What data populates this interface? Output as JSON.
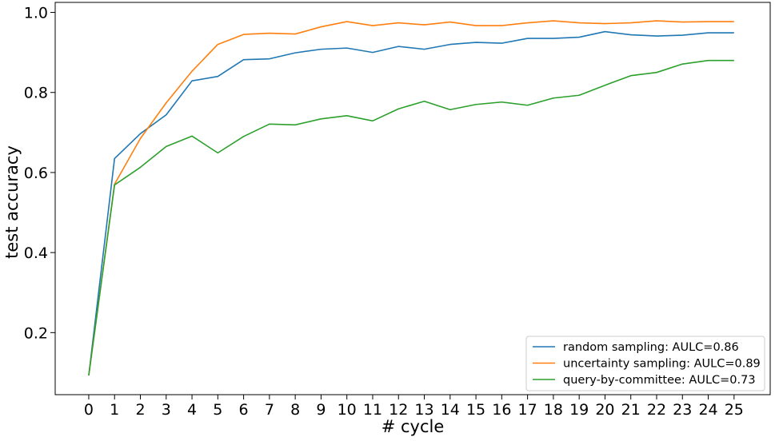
{
  "chart_data": {
    "type": "line",
    "xlabel": "# cycle",
    "ylabel": "test accuracy",
    "xlim": [
      -1.3,
      26.4
    ],
    "ylim": [
      0.045,
      1.025
    ],
    "x_ticks": [
      "0",
      "1",
      "2",
      "3",
      "4",
      "5",
      "6",
      "7",
      "8",
      "9",
      "10",
      "11",
      "12",
      "13",
      "14",
      "15",
      "16",
      "17",
      "18",
      "19",
      "20",
      "21",
      "22",
      "23",
      "24",
      "25"
    ],
    "y_ticks": [
      "0.2",
      "0.4",
      "0.6",
      "0.8",
      "1.0"
    ],
    "x": [
      0,
      1,
      2,
      3,
      4,
      5,
      6,
      7,
      8,
      9,
      10,
      11,
      12,
      13,
      14,
      15,
      16,
      17,
      18,
      19,
      20,
      21,
      22,
      23,
      24,
      25
    ],
    "grid": false,
    "legend_position": "lower-right",
    "series": [
      {
        "name": "random sampling: AULC=0.86",
        "color": "#1f77b4",
        "values": [
          0.093,
          0.635,
          0.697,
          0.744,
          0.829,
          0.84,
          0.882,
          0.884,
          0.899,
          0.908,
          0.911,
          0.9,
          0.915,
          0.908,
          0.92,
          0.925,
          0.923,
          0.935,
          0.935,
          0.938,
          0.952,
          0.944,
          0.941,
          0.943,
          0.949,
          0.949
        ]
      },
      {
        "name": "uncertainty sampling: AULC=0.89",
        "color": "#ff7f0e",
        "values": [
          0.093,
          0.571,
          0.685,
          0.774,
          0.853,
          0.92,
          0.945,
          0.948,
          0.946,
          0.964,
          0.977,
          0.967,
          0.974,
          0.969,
          0.976,
          0.967,
          0.967,
          0.974,
          0.979,
          0.974,
          0.972,
          0.974,
          0.979,
          0.976,
          0.977,
          0.977
        ]
      },
      {
        "name": "query-by-committee: AULC=0.73",
        "color": "#2ca02c",
        "values": [
          0.093,
          0.569,
          0.613,
          0.665,
          0.691,
          0.649,
          0.69,
          0.721,
          0.719,
          0.734,
          0.742,
          0.729,
          0.759,
          0.778,
          0.757,
          0.77,
          0.776,
          0.768,
          0.786,
          0.793,
          0.818,
          0.842,
          0.85,
          0.871,
          0.88,
          0.88
        ]
      }
    ]
  }
}
